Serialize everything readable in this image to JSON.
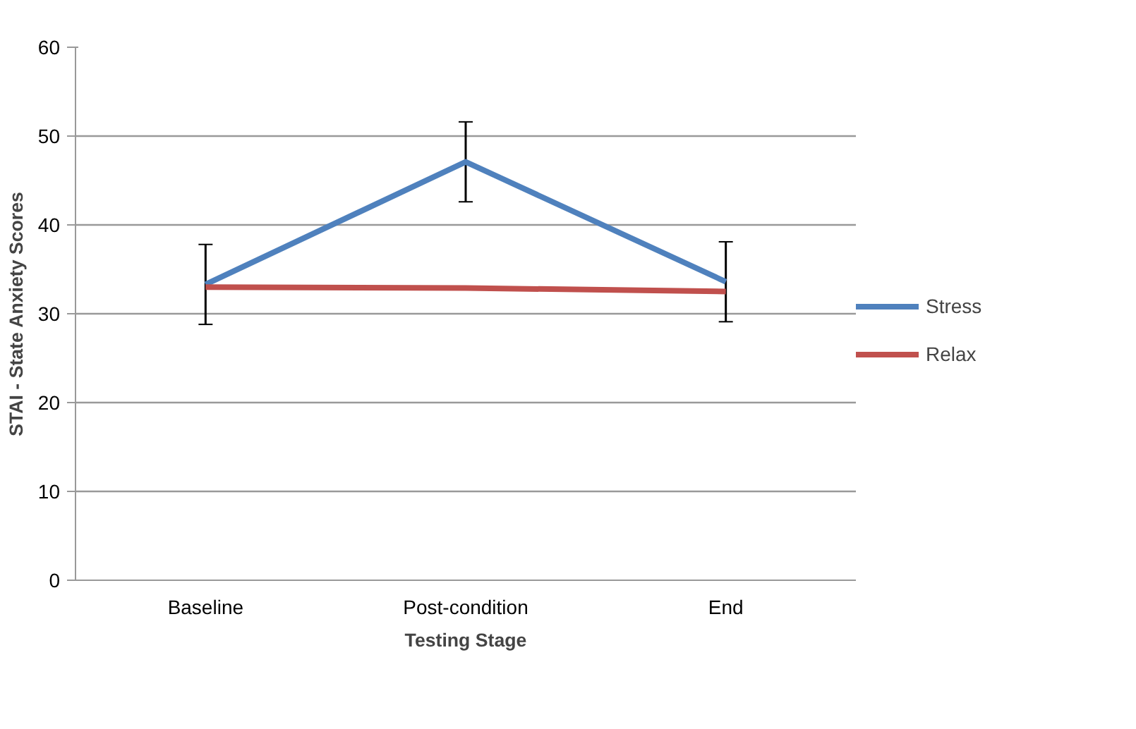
{
  "chart_data": {
    "type": "line",
    "xlabel": "Testing Stage",
    "ylabel": "STAI - State Anxiety Scores",
    "categories": [
      "Baseline",
      "Post-condition",
      "End"
    ],
    "series": [
      {
        "name": "Stress",
        "color": "#4f81bd",
        "values": [
          33.3,
          47.1,
          33.6
        ],
        "errors": [
          4.5,
          4.5,
          4.5
        ]
      },
      {
        "name": "Relax",
        "color": "#c0504d",
        "values": [
          33.0,
          32.9,
          32.5
        ]
      }
    ],
    "ylim": [
      0,
      60
    ],
    "yticks": [
      0,
      10,
      20,
      30,
      40,
      50,
      60
    ],
    "grid": "y",
    "legend": "right",
    "marker": "none",
    "line_style": "solid"
  }
}
